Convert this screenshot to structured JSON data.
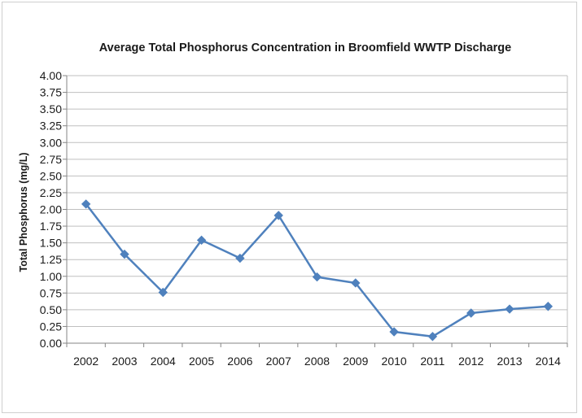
{
  "chart_data": {
    "type": "line",
    "title": "Average Total Phosphorus Concentration in Broomfield WWTP Discharge",
    "xlabel": "",
    "ylabel": "Total Phosphorus (mg/L)",
    "categories": [
      "2002",
      "2003",
      "2004",
      "2005",
      "2006",
      "2007",
      "2008",
      "2009",
      "2010",
      "2011",
      "2012",
      "2013",
      "2014"
    ],
    "series": [
      {
        "values": [
          2.08,
          1.33,
          0.76,
          1.54,
          1.27,
          1.91,
          0.99,
          0.9,
          0.17,
          0.1,
          0.45,
          0.51,
          0.55
        ]
      }
    ],
    "ylim": [
      0,
      4
    ],
    "yticks": [
      "0.00",
      "0.25",
      "0.50",
      "0.75",
      "1.00",
      "1.25",
      "1.50",
      "1.75",
      "2.00",
      "2.25",
      "2.50",
      "2.75",
      "3.00",
      "3.25",
      "3.50",
      "3.75",
      "4.00"
    ],
    "grid": true,
    "legend": "none",
    "colors": {
      "series": "#4f81bd",
      "grid": "#bfbfbf",
      "axis": "#868686"
    }
  }
}
